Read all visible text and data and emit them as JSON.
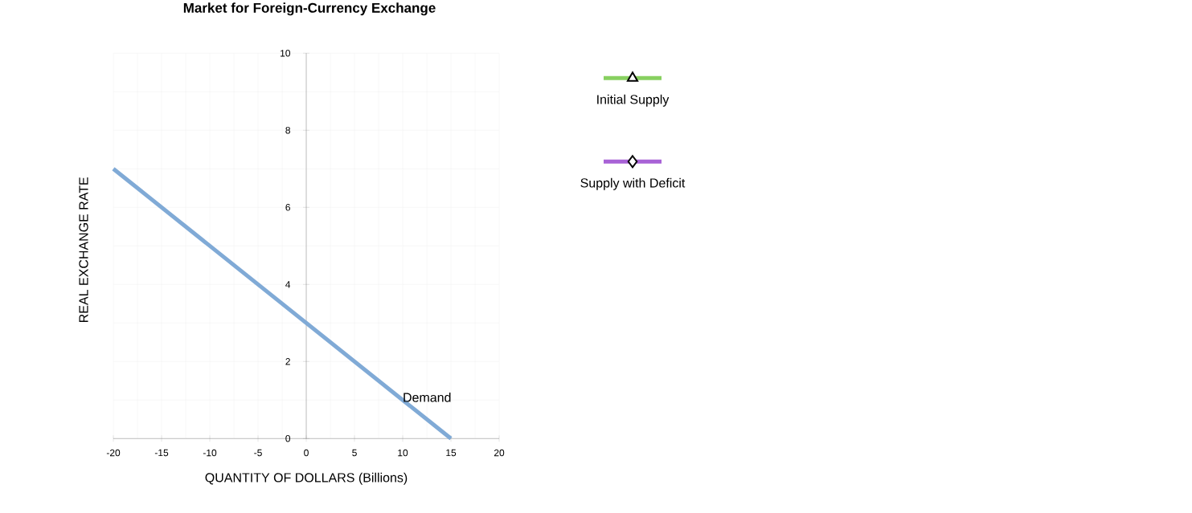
{
  "chart_data": {
    "type": "line",
    "title": "Market for Foreign-Currency Exchange",
    "xlabel": "QUANTITY OF DOLLARS (Billions)",
    "ylabel": "REAL EXCHANGE RATE",
    "xlim": [
      -20,
      20
    ],
    "ylim": [
      0,
      10
    ],
    "xticks": [
      -20,
      -15,
      -10,
      -5,
      0,
      5,
      10,
      15,
      20
    ],
    "yticks": [
      0,
      2,
      4,
      6,
      8,
      10
    ],
    "grid": true,
    "legend": "right",
    "series": [
      {
        "name": "Demand",
        "color": "#80aad6",
        "x": [
          -20,
          15
        ],
        "values": [
          7,
          0
        ],
        "marker": "none"
      },
      {
        "name": "Initial Supply",
        "color": "#88d060",
        "marker": "triangle"
      },
      {
        "name": "Supply with Deficit",
        "color": "#a862d6",
        "marker": "diamond"
      }
    ]
  }
}
